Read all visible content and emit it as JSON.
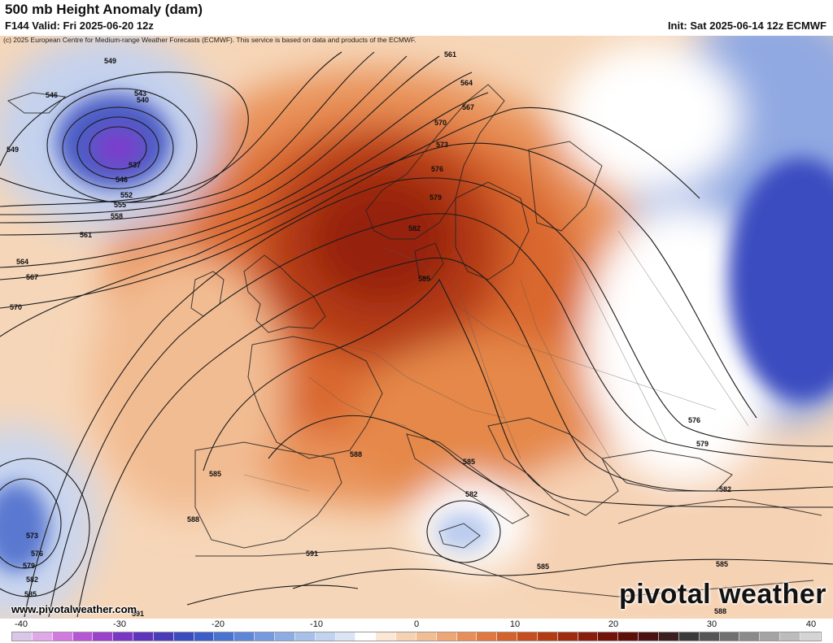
{
  "header": {
    "title": "500 mb Height Anomaly (dam)",
    "valid": "F144 Valid: Fri 2025-06-20 12z",
    "init": "Init: Sat 2025-06-14 12z ECMWF",
    "copyright": "(c) 2025 European Centre for Medium-range Weather Forecasts (ECMWF). This service is based on data and products of the ECMWF."
  },
  "map": {
    "contour_labels": [
      "549",
      "546",
      "543",
      "540",
      "537",
      "546",
      "549",
      "552",
      "555",
      "558",
      "561",
      "564",
      "567",
      "570",
      "561",
      "564",
      "567",
      "570",
      "573",
      "576",
      "579",
      "582",
      "585",
      "588",
      "585",
      "588",
      "573",
      "576",
      "579",
      "582",
      "585",
      "591",
      "582",
      "585",
      "576",
      "579",
      "582",
      "585",
      "585",
      "588",
      "591"
    ],
    "colors": {
      "strong_positive": "#a01e10",
      "positive": "#e07a3a",
      "weak_positive": "#f8dcc0",
      "neutral": "#ffffff",
      "weak_negative": "#d8e0f0",
      "negative": "#4a64c8",
      "strong_negative": "#7a3ccc"
    }
  },
  "watermark": {
    "website": "www.pivotalweather.com",
    "brand": "pivotal weather"
  },
  "colorbar": {
    "ticks": [
      "-40",
      "-30",
      "-20",
      "-10",
      "0",
      "10",
      "20",
      "30",
      "40"
    ],
    "swatches": [
      "#d9c7e8",
      "#e0a8e8",
      "#d27ae0",
      "#b656d6",
      "#9a42cc",
      "#7c36c4",
      "#5e34bc",
      "#4a3cb8",
      "#3a4cc0",
      "#3c5ec8",
      "#4a72d0",
      "#5e86d8",
      "#7499de",
      "#8dace4",
      "#a7c0ea",
      "#c2d3f0",
      "#dbe4f4",
      "#ffffff",
      "#fbe7d4",
      "#f6d2b2",
      "#f2bd92",
      "#eea674",
      "#e88f58",
      "#e07840",
      "#d4622c",
      "#c64e1e",
      "#b33c14",
      "#a02c10",
      "#8a1e0c",
      "#741408",
      "#5e1008",
      "#4c1212",
      "#3c2020",
      "#3a3a3a",
      "#555555",
      "#707070",
      "#8a8a8a",
      "#a4a4a4",
      "#bcbcbc",
      "#d4d4d4"
    ]
  }
}
